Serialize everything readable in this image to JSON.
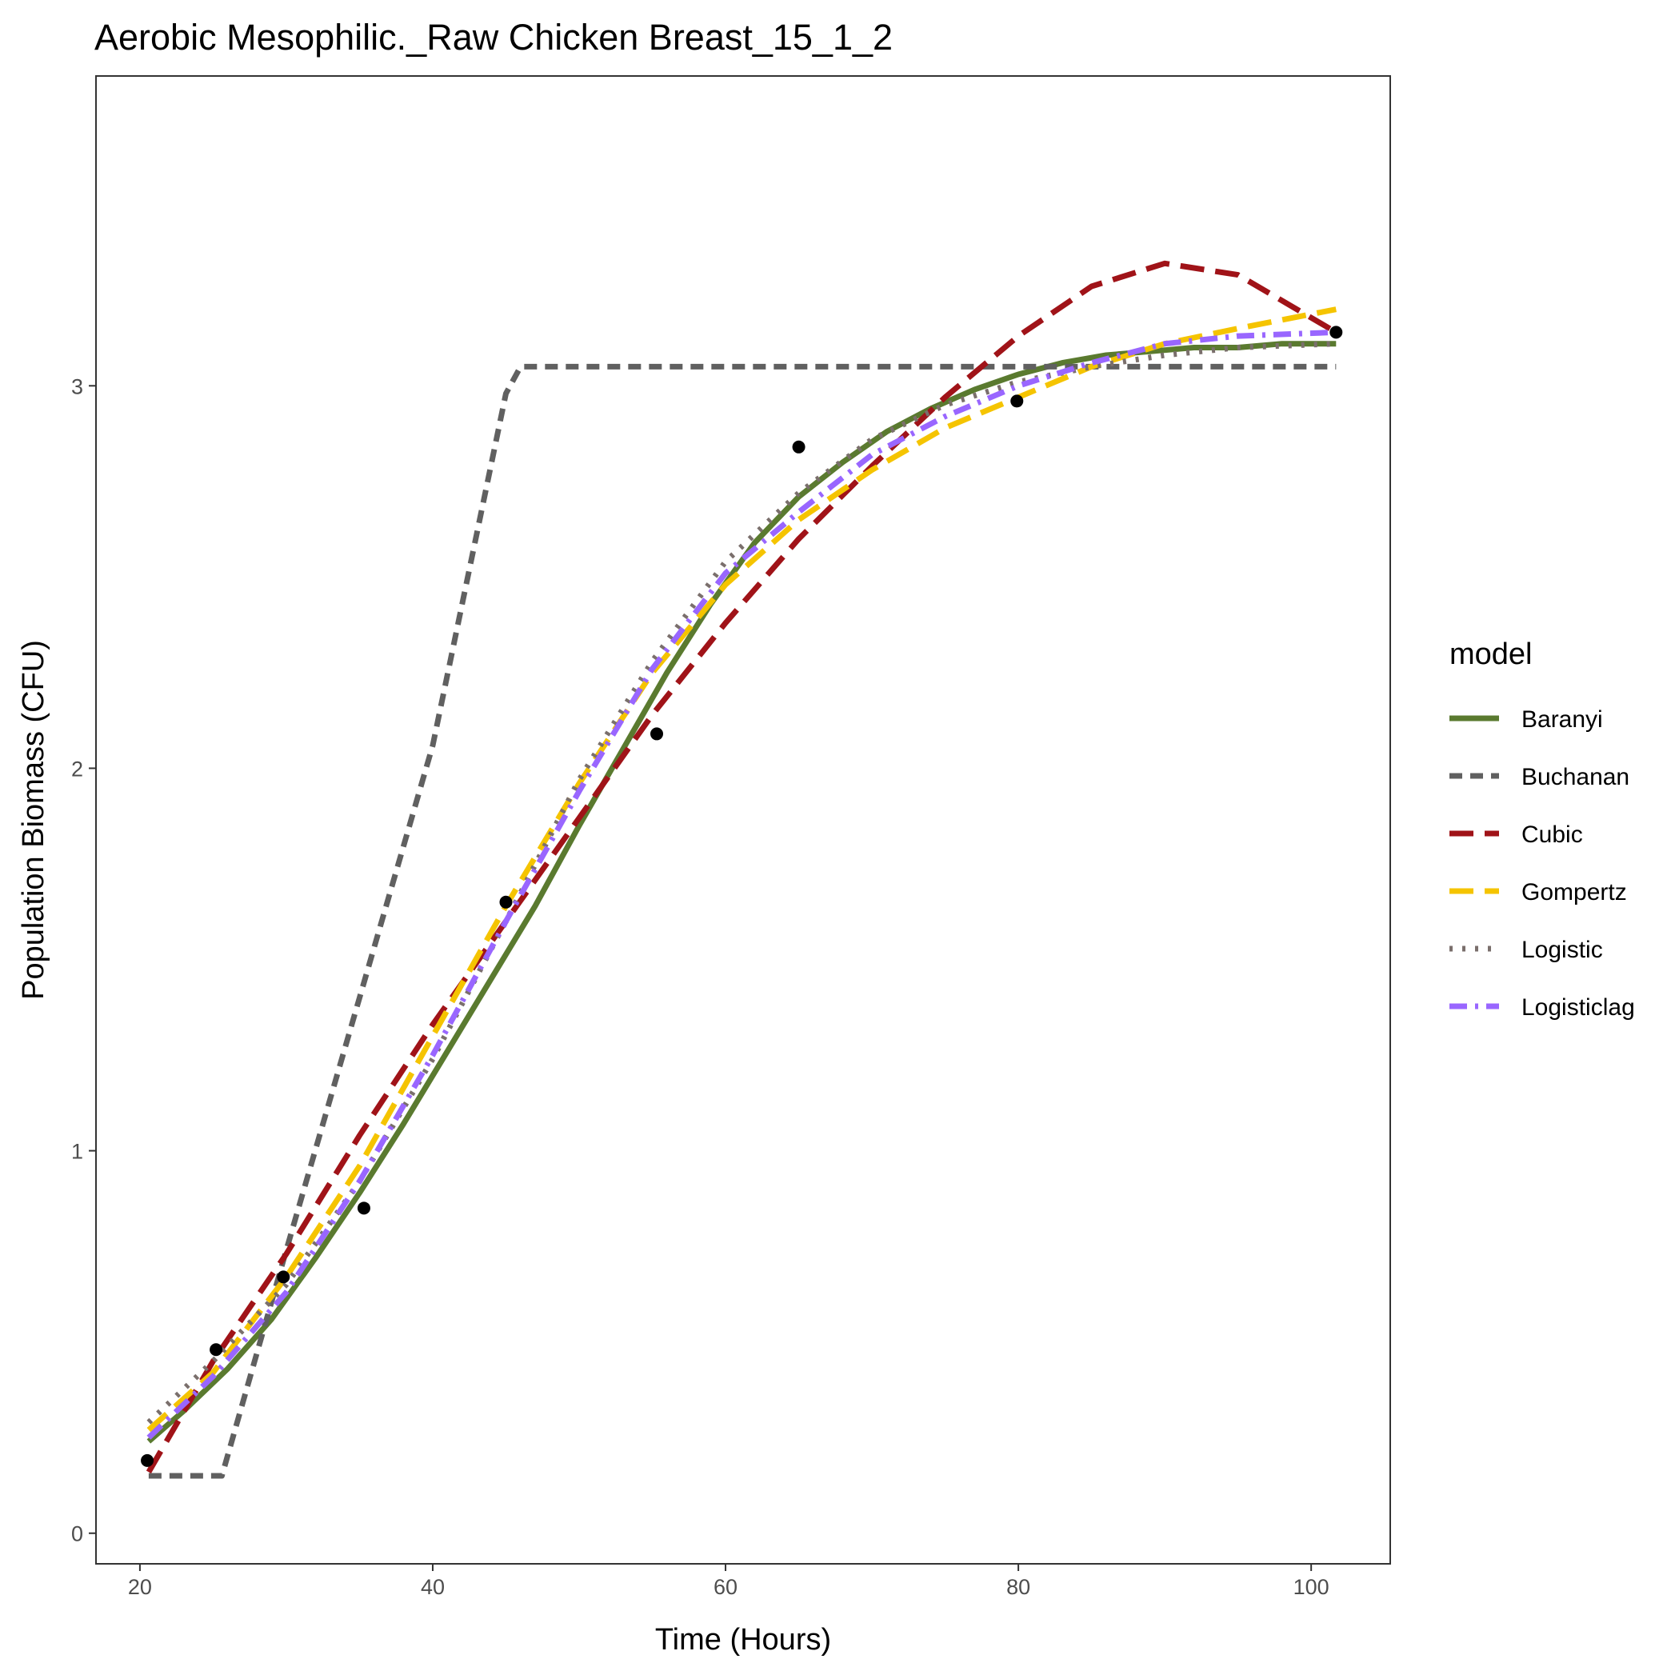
{
  "chart_data": {
    "type": "line",
    "title": "Aerobic Mesophilic._Raw Chicken Breast_15_1_2",
    "xlabel": "Time (Hours)",
    "ylabel": "Population Biomass (CFU)",
    "xlim": [
      17.0,
      105.4
    ],
    "ylim": [
      -0.08,
      3.81
    ],
    "xticks": [
      20,
      40,
      60,
      80,
      100
    ],
    "yticks": [
      0,
      1,
      2,
      3
    ],
    "xtick_labels": [
      "20",
      "40",
      "60",
      "80",
      "100"
    ],
    "ytick_labels": [
      "0",
      "1",
      "2",
      "3"
    ],
    "grid": false,
    "legend": {
      "title": "model",
      "position": "right"
    },
    "points": {
      "x": [
        20.5,
        25.2,
        29.8,
        35.3,
        45.0,
        55.3,
        65.0,
        79.9,
        101.7
      ],
      "y": [
        0.19,
        0.48,
        0.67,
        0.85,
        1.65,
        2.09,
        2.84,
        2.96,
        3.14
      ]
    },
    "series": [
      {
        "name": "Baranyi",
        "color": "#5a7a2f",
        "dash": "solid",
        "x": [
          20.6,
          23,
          26,
          29,
          32,
          35,
          38,
          41,
          44,
          47,
          50,
          53,
          56,
          59,
          62,
          65,
          68,
          71,
          74,
          77,
          80,
          83,
          86,
          89,
          92,
          95,
          98,
          101.7
        ],
        "y": [
          0.24,
          0.32,
          0.43,
          0.56,
          0.72,
          0.89,
          1.07,
          1.26,
          1.45,
          1.64,
          1.85,
          2.05,
          2.25,
          2.43,
          2.59,
          2.71,
          2.8,
          2.88,
          2.94,
          2.99,
          3.03,
          3.06,
          3.08,
          3.09,
          3.1,
          3.1,
          3.11,
          3.11
        ]
      },
      {
        "name": "Buchanan",
        "color": "#606060",
        "dash": "short",
        "x": [
          20.6,
          25.6,
          30,
          35,
          40,
          45.0,
          46.0,
          101.7
        ],
        "y": [
          0.15,
          0.15,
          0.74,
          1.4,
          2.06,
          2.98,
          3.05,
          3.05
        ]
      },
      {
        "name": "Cubic",
        "color": "#a01318",
        "dash": "long",
        "x": [
          20.6,
          25,
          30,
          35,
          40,
          45,
          50,
          55,
          60,
          65,
          70,
          75,
          80,
          85,
          90,
          95,
          101.7
        ],
        "y": [
          0.16,
          0.45,
          0.73,
          1.04,
          1.33,
          1.6,
          1.87,
          2.14,
          2.38,
          2.6,
          2.79,
          2.97,
          3.13,
          3.26,
          3.32,
          3.29,
          3.14
        ]
      },
      {
        "name": "Gompertz",
        "color": "#f5c400",
        "dash": "long",
        "x": [
          20.6,
          25,
          30,
          35,
          40,
          45,
          50,
          55,
          60,
          65,
          70,
          75,
          80,
          85,
          90,
          95,
          101.7
        ],
        "y": [
          0.27,
          0.42,
          0.67,
          0.96,
          1.3,
          1.64,
          1.96,
          2.25,
          2.48,
          2.65,
          2.78,
          2.89,
          2.97,
          3.05,
          3.11,
          3.15,
          3.2
        ]
      },
      {
        "name": "Logistic",
        "color": "#7a6f6c",
        "dash": "dotted",
        "x": [
          20.6,
          25,
          30,
          35,
          40,
          45,
          50,
          55,
          60,
          65,
          70,
          75,
          80,
          85,
          90,
          95,
          101.7
        ],
        "y": [
          0.29,
          0.45,
          0.65,
          0.92,
          1.24,
          1.6,
          1.97,
          2.28,
          2.54,
          2.72,
          2.86,
          2.95,
          3.01,
          3.05,
          3.08,
          3.1,
          3.11
        ]
      },
      {
        "name": "Logisticlag",
        "color": "#9966ff",
        "dash": "dashdot",
        "x": [
          20.6,
          25,
          30,
          35,
          40,
          45,
          50,
          55,
          60,
          65,
          70,
          75,
          80,
          85,
          90,
          95,
          101.7
        ],
        "y": [
          0.25,
          0.41,
          0.63,
          0.92,
          1.25,
          1.6,
          1.94,
          2.26,
          2.51,
          2.67,
          2.82,
          2.92,
          3.0,
          3.06,
          3.11,
          3.13,
          3.14
        ]
      }
    ]
  }
}
